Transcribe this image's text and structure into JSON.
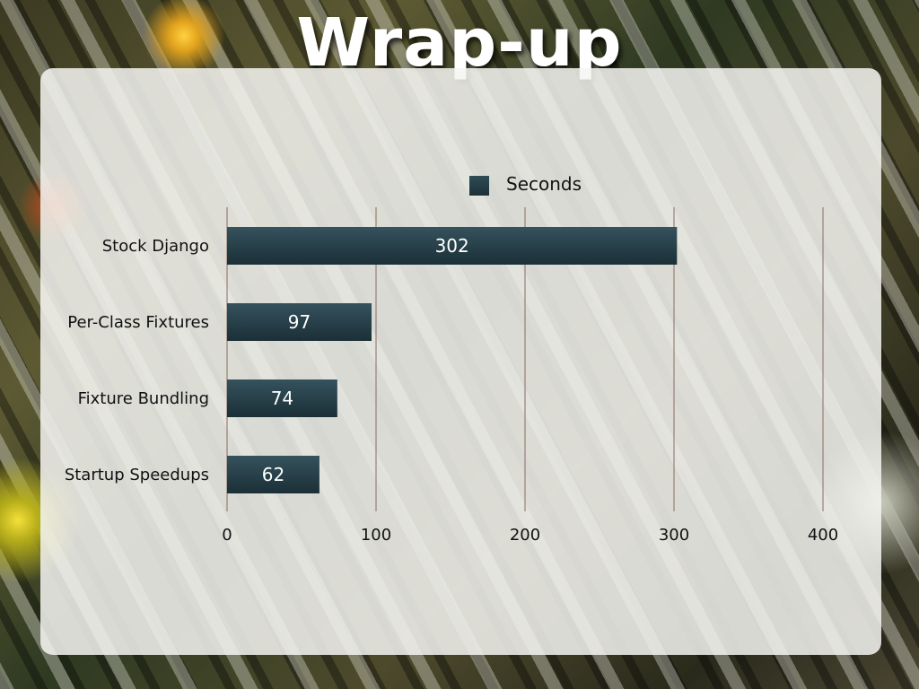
{
  "slide": {
    "title": "Wrap-up"
  },
  "colors": {
    "bar": "#223c46",
    "bar_top": "#35525d",
    "gridline": "#8a6a62",
    "panel": "#f4f4f1"
  },
  "chart_data": {
    "type": "bar",
    "orientation": "horizontal",
    "categories": [
      "Stock Django",
      "Per-Class Fixtures",
      "Fixture Bundling",
      "Startup Speedups"
    ],
    "series": [
      {
        "name": "Seconds",
        "values": [
          302,
          97,
          74,
          62
        ]
      }
    ],
    "xlim": [
      0,
      400
    ],
    "xticks": [
      0,
      100,
      200,
      300,
      400
    ],
    "grid": true,
    "legend": "top-center",
    "data_labels": true
  }
}
